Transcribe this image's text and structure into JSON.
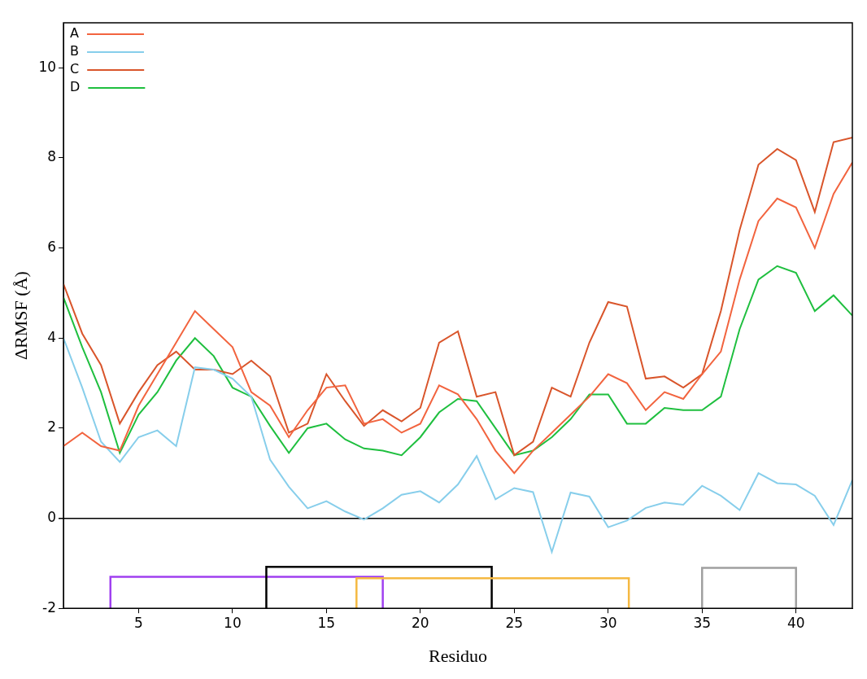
{
  "chart_data": {
    "type": "line",
    "x_label": "Residuo",
    "y_label": "ΔRMSF (Å)",
    "x": [
      1,
      2,
      3,
      4,
      5,
      6,
      7,
      8,
      9,
      10,
      11,
      12,
      13,
      14,
      15,
      16,
      17,
      18,
      19,
      20,
      21,
      22,
      23,
      24,
      25,
      26,
      27,
      28,
      29,
      30,
      31,
      32,
      33,
      34,
      35,
      36,
      37,
      38,
      39,
      40,
      41,
      42,
      43
    ],
    "series": [
      {
        "name": "A",
        "color": "#f2643f",
        "values": [
          1.6,
          1.9,
          1.6,
          1.5,
          2.5,
          3.2,
          3.9,
          4.6,
          4.2,
          3.8,
          2.8,
          2.5,
          1.8,
          2.4,
          2.9,
          2.95,
          2.1,
          2.2,
          1.9,
          2.1,
          2.95,
          2.75,
          2.2,
          1.5,
          1.0,
          1.5,
          1.9,
          2.3,
          2.7,
          3.2,
          3.0,
          2.4,
          2.8,
          2.65,
          3.2,
          3.7,
          5.3,
          6.6,
          7.1,
          6.9,
          6.0,
          7.2,
          7.9
        ]
      },
      {
        "name": "B",
        "color": "#87ceeb",
        "values": [
          4.0,
          2.9,
          1.7,
          1.25,
          1.8,
          1.95,
          1.6,
          3.35,
          3.3,
          3.1,
          2.7,
          1.3,
          0.7,
          0.22,
          0.38,
          0.15,
          -0.03,
          0.22,
          0.52,
          0.6,
          0.35,
          0.75,
          1.38,
          0.42,
          0.67,
          0.58,
          -0.75,
          0.57,
          0.48,
          -0.2,
          -0.05,
          0.23,
          0.35,
          0.3,
          0.72,
          0.5,
          0.18,
          1.0,
          0.78,
          0.75,
          0.5,
          -0.15,
          0.85
        ]
      },
      {
        "name": "C",
        "color": "#d9552b",
        "values": [
          5.2,
          4.1,
          3.4,
          2.1,
          2.8,
          3.4,
          3.7,
          3.3,
          3.3,
          3.2,
          3.5,
          3.15,
          1.9,
          2.1,
          3.2,
          2.6,
          2.05,
          2.4,
          2.15,
          2.45,
          3.9,
          4.15,
          2.7,
          2.8,
          1.4,
          1.7,
          2.9,
          2.7,
          3.9,
          4.8,
          4.7,
          3.1,
          3.15,
          2.9,
          3.2,
          4.6,
          6.4,
          7.85,
          8.2,
          7.95,
          6.8,
          8.35,
          8.45
        ]
      },
      {
        "name": "D",
        "color": "#1fbf3f",
        "values": [
          4.9,
          3.8,
          2.8,
          1.45,
          2.3,
          2.8,
          3.5,
          4.0,
          3.6,
          2.9,
          2.7,
          2.05,
          1.45,
          2.0,
          2.1,
          1.75,
          1.55,
          1.5,
          1.4,
          1.8,
          2.35,
          2.65,
          2.6,
          2.0,
          1.4,
          1.5,
          1.8,
          2.2,
          2.75,
          2.75,
          2.1,
          2.1,
          2.45,
          2.4,
          2.4,
          2.7,
          4.2,
          5.3,
          5.6,
          5.45,
          4.6,
          4.95,
          4.5
        ]
      }
    ],
    "bonds": [
      {
        "from": 3.5,
        "to": 18,
        "level": -1.3,
        "color": "#a040f0"
      },
      {
        "from": 11.8,
        "to": 23.8,
        "level": -1.08,
        "color": "#000000"
      },
      {
        "from": 16.6,
        "to": 31.1,
        "level": -1.33,
        "color": "#f5b942"
      },
      {
        "from": 35,
        "to": 40,
        "level": -1.1,
        "color": "#a0a0a0"
      }
    ],
    "xlim": [
      1,
      43
    ],
    "xticks": [
      5,
      10,
      15,
      20,
      25,
      30,
      35,
      40
    ],
    "ylim": [
      -2,
      11
    ],
    "yticks": [
      -2,
      0,
      2,
      4,
      6,
      8,
      10
    ],
    "grid": false,
    "legend": "upper left"
  }
}
